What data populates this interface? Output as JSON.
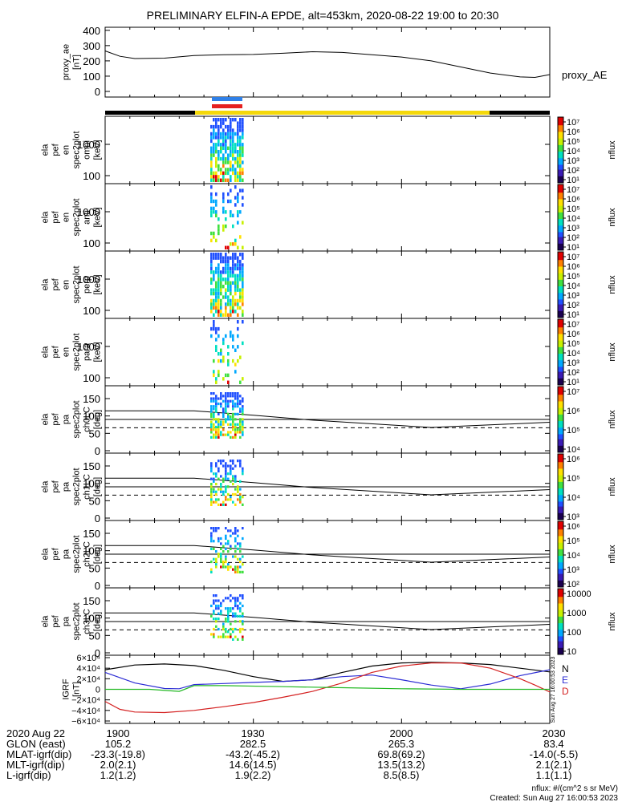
{
  "figure": {
    "title": "PRELIMINARY ELFIN-A EPDE, alt=453km, 2020-08-22 19:00 to 20:30"
  },
  "colors": {
    "axis": "#000000",
    "bar_dark": "#000000",
    "bar_yellow": "#f4d80a",
    "marker_blue": "#2f80e8",
    "marker_red": "#e52020",
    "grf_n": "#000000",
    "grf_e": "#2c2cd4",
    "grf_d": "#d42020",
    "grf_extra": "#22b822",
    "colormap": [
      "#1a0050",
      "#3a1ab4",
      "#2050ff",
      "#00a8ff",
      "#00e0c0",
      "#40e040",
      "#c8f000",
      "#ffe000",
      "#ff8000",
      "#e00000"
    ]
  },
  "chart_data": [
    {
      "type": "line",
      "panel": "proxy_ae",
      "ylabel": [
        "proxy_ae",
        "[nT]"
      ],
      "legend": "proxy_AE",
      "ylim": [
        0,
        420
      ],
      "yticks": [
        "400",
        "300",
        "200",
        "100",
        "0"
      ],
      "xlim": [
        19.0,
        20.5
      ],
      "series": [
        {
          "name": "proxy_AE",
          "x": [
            19.0,
            19.05,
            19.1,
            19.2,
            19.3,
            19.4,
            19.5,
            19.6,
            19.7,
            19.8,
            19.9,
            20.0,
            20.1,
            20.2,
            20.3,
            20.4,
            20.45,
            20.5
          ],
          "values": [
            265,
            230,
            215,
            218,
            235,
            240,
            242,
            250,
            260,
            255,
            240,
            225,
            200,
            160,
            120,
            95,
            92,
            110
          ]
        }
      ]
    },
    {
      "type": "heatmap",
      "panel": "omni",
      "ylabel": [
        "ela",
        "pef",
        "en",
        "spec2plot",
        "omni",
        "[keV]"
      ],
      "yscale": "log",
      "yticks": [
        "1000",
        "100"
      ],
      "colorbar_label": "nflux",
      "colorbar_ticks": [
        "10⁷",
        "10⁶",
        "10⁵",
        "10⁴",
        "10³",
        "10²",
        "10¹"
      ]
    },
    {
      "type": "heatmap",
      "panel": "anti",
      "ylabel": [
        "ela",
        "pef",
        "en",
        "spec2plot",
        "anti",
        "[keV]"
      ],
      "yscale": "log",
      "yticks": [
        "1000",
        "100"
      ],
      "colorbar_label": "nflux",
      "colorbar_ticks": [
        "10⁷",
        "10⁶",
        "10⁵",
        "10⁴",
        "10³",
        "10²",
        "10¹"
      ]
    },
    {
      "type": "heatmap",
      "panel": "perp",
      "ylabel": [
        "ela",
        "pef",
        "en",
        "spec2plot",
        "perp",
        "[keV]"
      ],
      "yscale": "log",
      "yticks": [
        "1000",
        "100"
      ],
      "colorbar_label": "nflux",
      "colorbar_ticks": [
        "10⁷",
        "10⁶",
        "10⁵",
        "10⁴",
        "10³",
        "10²",
        "10¹"
      ]
    },
    {
      "type": "heatmap",
      "panel": "para",
      "ylabel": [
        "ela",
        "pef",
        "en",
        "spec2plot",
        "para",
        "[keV]"
      ],
      "yscale": "log",
      "yticks": [
        "1000",
        "100"
      ],
      "colorbar_label": "nflux",
      "colorbar_ticks": [
        "10⁷",
        "10⁶",
        "10⁵",
        "10⁴",
        "10³",
        "10²",
        "10¹"
      ]
    },
    {
      "type": "heatmap",
      "panel": "ch0LC",
      "ylabel": [
        "ela",
        "pef",
        "pa",
        "spec2plot",
        "ch0LC",
        "[deg]"
      ],
      "ylim": [
        0,
        180
      ],
      "yticks": [
        "150",
        "100",
        "50",
        "0"
      ],
      "colorbar_label": "nflux",
      "colorbar_ticks": [
        "10⁷",
        "10⁶",
        "10⁵",
        "10⁴"
      ]
    },
    {
      "type": "heatmap",
      "panel": "ch1LC",
      "ylabel": [
        "ela",
        "pef",
        "pa",
        "spec2plot",
        "ch1LC",
        "[deg]"
      ],
      "ylim": [
        0,
        180
      ],
      "yticks": [
        "150",
        "100",
        "50",
        "0"
      ],
      "colorbar_label": "nflux",
      "colorbar_ticks": [
        "10⁶",
        "10⁵",
        "10⁴",
        "10³"
      ]
    },
    {
      "type": "heatmap",
      "panel": "ch2LC",
      "ylabel": [
        "ela",
        "pef",
        "pa",
        "spec2plot",
        "ch2LC",
        "[deg]"
      ],
      "ylim": [
        0,
        180
      ],
      "yticks": [
        "150",
        "100",
        "50",
        "0"
      ],
      "colorbar_label": "nflux",
      "colorbar_ticks": [
        "10⁶",
        "10⁵",
        "10⁴",
        "10³",
        "10²"
      ]
    },
    {
      "type": "heatmap",
      "panel": "ch3LC",
      "ylabel": [
        "ela",
        "pef",
        "pa",
        "spec2plot",
        "ch3LC",
        "[deg]"
      ],
      "ylim": [
        0,
        180
      ],
      "yticks": [
        "150",
        "100",
        "50",
        "0"
      ],
      "colorbar_label": "nflux",
      "colorbar_ticks": [
        "10000",
        "1000",
        "100",
        "10"
      ]
    },
    {
      "type": "line",
      "panel": "IGRF",
      "ylabel": [
        "IGRF",
        "[nT]"
      ],
      "ylim": [
        -60000,
        60000
      ],
      "yticks": [
        "6×10⁴",
        "4×10⁴",
        "2×10⁴",
        "0",
        "−2×10⁴",
        "−4×10⁴",
        "−6×10⁴"
      ],
      "xlim": [
        19.0,
        20.5
      ],
      "legend": [
        "N",
        "E",
        "D"
      ],
      "side_text": "Sun Aug 27 16:00:53 2023",
      "series": [
        {
          "name": "N",
          "x": [
            19.0,
            19.1,
            19.2,
            19.3,
            19.4,
            19.5,
            19.6,
            19.7,
            19.8,
            19.9,
            20.0,
            20.1,
            20.2,
            20.3,
            20.4,
            20.5
          ],
          "values": [
            37000,
            46000,
            48000,
            45000,
            36000,
            24000,
            15000,
            18000,
            32000,
            44000,
            50000,
            51000,
            50000,
            47000,
            40000,
            33000
          ]
        },
        {
          "name": "E",
          "x": [
            19.0,
            19.1,
            19.2,
            19.25,
            19.3,
            19.4,
            19.5,
            19.6,
            19.7,
            19.8,
            19.9,
            20.0,
            20.1,
            20.2,
            20.3,
            20.4,
            20.5
          ],
          "values": [
            32000,
            12000,
            1500,
            1000,
            9000,
            11000,
            13000,
            15000,
            18000,
            24000,
            27000,
            18000,
            8000,
            1000,
            10000,
            26000,
            37000
          ]
        },
        {
          "name": "D",
          "x": [
            19.0,
            19.05,
            19.1,
            19.2,
            19.3,
            19.4,
            19.5,
            19.6,
            19.7,
            19.8,
            19.9,
            20.0,
            20.1,
            20.2,
            20.3,
            20.4,
            20.45,
            20.5
          ],
          "values": [
            -23000,
            -38000,
            -43000,
            -44000,
            -40000,
            -33000,
            -25000,
            -15000,
            -4000,
            12000,
            32000,
            44000,
            50000,
            50000,
            40000,
            20000,
            8000,
            -5000
          ]
        },
        {
          "name": "",
          "x": [
            19.0,
            19.15,
            19.25,
            19.3,
            19.4,
            19.6,
            19.8,
            20.0,
            20.2,
            20.5
          ],
          "values": [
            0,
            0,
            -4000,
            7000,
            7000,
            5000,
            3000,
            1000,
            0,
            0
          ]
        }
      ]
    }
  ],
  "footer": {
    "rows": [
      [
        "2020 Aug 22",
        "1900",
        "1930",
        "2000",
        "2030"
      ],
      [
        "GLON (east)",
        "105.2",
        "282.5",
        "265.3",
        "83.4"
      ],
      [
        "MLAT-igrf(dip)",
        "-23.3(-19.8)",
        "-43.2(-45.2)",
        "69.8(69.2)",
        "-14.0(-5.5)"
      ],
      [
        "MLT-igrf(dip)",
        "2.0(2.1)",
        "14.6(14.5)",
        "13.5(13.2)",
        "2.1(2.1)"
      ],
      [
        "L-igrf(dip)",
        "1.2(1.2)",
        "1.9(2.2)",
        "8.5(8.5)",
        "1.1(1.1)"
      ]
    ],
    "units": "nflux: #/(cm^2 s sr MeV)",
    "created": "Created: Sun Aug 27 16:00:53 2023"
  }
}
